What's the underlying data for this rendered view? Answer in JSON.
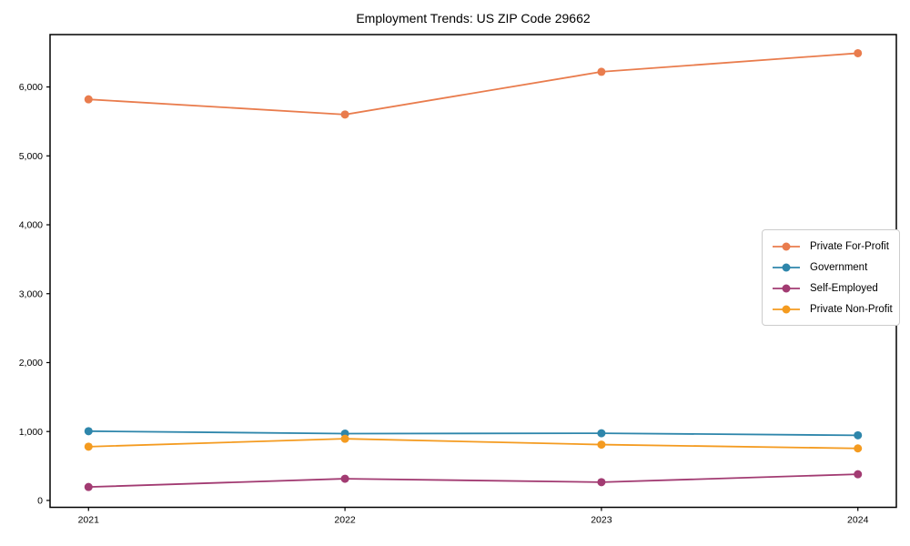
{
  "chart_data": {
    "type": "line",
    "title": "Employment Trends: US ZIP Code 29662",
    "xlabel": "",
    "ylabel": "",
    "categories": [
      "2021",
      "2022",
      "2023",
      "2024"
    ],
    "series": [
      {
        "name": "Private For-Profit",
        "color": "#E97C4D",
        "values": [
          5820,
          5600,
          6220,
          6490
        ]
      },
      {
        "name": "Government",
        "color": "#2E86AB",
        "values": [
          1005,
          970,
          975,
          945
        ]
      },
      {
        "name": "Self-Employed",
        "color": "#A23B72",
        "values": [
          195,
          315,
          265,
          380
        ]
      },
      {
        "name": "Private Non-Profit",
        "color": "#F49B20",
        "values": [
          780,
          895,
          810,
          755
        ]
      }
    ],
    "yticks": [
      {
        "value": 0,
        "label": "0"
      },
      {
        "value": 1000,
        "label": "1,000"
      },
      {
        "value": 2000,
        "label": "2,000"
      },
      {
        "value": 3000,
        "label": "3,000"
      },
      {
        "value": 4000,
        "label": "4,000"
      },
      {
        "value": 5000,
        "label": "5,000"
      },
      {
        "value": 6000,
        "label": "6,000"
      }
    ],
    "ylim": [
      -100,
      6760
    ],
    "xlim": [
      -0.15,
      3.15
    ],
    "grid": false,
    "legend_position": "center-right",
    "axis_color": "#000000",
    "background": "#ffffff"
  }
}
